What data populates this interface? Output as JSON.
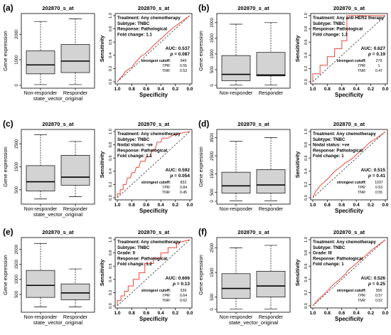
{
  "figure": {
    "panels": [
      {
        "letter": "(a)",
        "box": {
          "title": "202870_s_at",
          "ylabel": "Gene expression",
          "xlabel": "state_vector_original",
          "ticks": [
            "0",
            "1000",
            "2000"
          ],
          "ymax": 2700,
          "groups": [
            {
              "name": "Non-responder",
              "wlo": 30,
              "q1": 450,
              "med": 800,
              "q3": 1350,
              "whi": 2500
            },
            {
              "name": "Responder",
              "wlo": 30,
              "q1": 500,
              "med": 950,
              "q3": 1600,
              "whi": 2600
            }
          ]
        },
        "roc": {
          "title": "202870_s_at",
          "info": [
            "Treatment: Any chemotherapy",
            "Subtype: TNBC",
            "Response: Pathological",
            "Fold change: 1.1"
          ],
          "auc": "AUC: 0.537",
          "p_label": "p",
          "p_value": "= 0.087",
          "strongest": "strongest cutoff:",
          "cutoff": "949",
          "tpr_label": "TPR:",
          "tpr": "0.55",
          "tnr_label": "TNR:",
          "tnr": "0.53",
          "curve": [
            [
              1,
              0
            ],
            [
              0.96,
              0.06
            ],
            [
              0.92,
              0.1
            ],
            [
              0.9,
              0.14
            ],
            [
              0.86,
              0.18
            ],
            [
              0.8,
              0.22
            ],
            [
              0.76,
              0.28
            ],
            [
              0.72,
              0.33
            ],
            [
              0.68,
              0.38
            ],
            [
              0.62,
              0.42
            ],
            [
              0.58,
              0.46
            ],
            [
              0.54,
              0.5
            ],
            [
              0.5,
              0.55
            ],
            [
              0.45,
              0.6
            ],
            [
              0.4,
              0.65
            ],
            [
              0.35,
              0.7
            ],
            [
              0.3,
              0.75
            ],
            [
              0.25,
              0.8
            ],
            [
              0.2,
              0.84
            ],
            [
              0.15,
              0.88
            ],
            [
              0.1,
              0.92
            ],
            [
              0.05,
              0.96
            ],
            [
              0,
              1
            ]
          ]
        }
      },
      {
        "letter": "(b)",
        "box": {
          "title": "202870_s_at",
          "ylabel": "Gene expression",
          "xlabel": "",
          "ticks": [
            "0",
            "500",
            "1000",
            "1500",
            "2000"
          ],
          "ymax": 2200,
          "groups": [
            {
              "name": "Non-responder",
              "wlo": 10,
              "q1": 150,
              "med": 350,
              "q3": 950,
              "whi": 1950
            },
            {
              "name": "Responder",
              "wlo": 10,
              "q1": 300,
              "med": 330,
              "q3": 1050,
              "whi": 2000
            }
          ]
        },
        "roc": {
          "title": "202870_s_at",
          "info": [
            "Treatment: Any anti-HER2 therapy",
            "Subtype: TNBC",
            "Response: Pathological",
            "Fold change: 1.3"
          ],
          "auc": "AUC: 0.627",
          "p_label": "p",
          "p_value": "= 0.19",
          "strongest": "strongest cutoff:",
          "cutoff": "279",
          "tpr_label": "TPR:",
          "tpr": "1",
          "tnr_label": "TNR:",
          "tnr": "0.47",
          "curve": [
            [
              1,
              0
            ],
            [
              1,
              0.12
            ],
            [
              0.9,
              0.12
            ],
            [
              0.9,
              0.25
            ],
            [
              0.8,
              0.25
            ],
            [
              0.8,
              0.38
            ],
            [
              0.7,
              0.38
            ],
            [
              0.7,
              0.5
            ],
            [
              0.6,
              0.5
            ],
            [
              0.6,
              0.62
            ],
            [
              0.53,
              0.62
            ],
            [
              0.53,
              1
            ],
            [
              0.4,
              1
            ],
            [
              0,
              1
            ]
          ]
        }
      },
      {
        "letter": "(c)",
        "box": {
          "title": "202870_s_at",
          "ylabel": "Gene expression",
          "xlabel": "state_vector_original",
          "ticks": [
            "500",
            "1500",
            "2500"
          ],
          "ymax": 3000,
          "groups": [
            {
              "name": "Non-responder",
              "wlo": 100,
              "q1": 450,
              "med": 850,
              "q3": 1550,
              "whi": 2900
            },
            {
              "name": "Responder",
              "wlo": 200,
              "q1": 700,
              "med": 1050,
              "q3": 2000,
              "whi": 2600
            }
          ]
        },
        "roc": {
          "title": "202870_s_at",
          "info": [
            "Treatment: Any chemotherapy",
            "Subtype: TNBC",
            "Nodal status: -ve",
            "Response: Pathological",
            "Fold change: 1.1"
          ],
          "auc": "AUC: 0.592",
          "p_label": "p",
          "p_value": "= 0.054",
          "strongest": "strongest cutoff:",
          "cutoff": "832",
          "tpr_label": "TPR:",
          "tpr": "0.84",
          "tnr_label": "TNR:",
          "tnr": "0.45",
          "curve": [
            [
              1,
              0
            ],
            [
              1,
              0.06
            ],
            [
              0.96,
              0.06
            ],
            [
              0.96,
              0.12
            ],
            [
              0.92,
              0.12
            ],
            [
              0.92,
              0.2
            ],
            [
              0.88,
              0.2
            ],
            [
              0.86,
              0.3
            ],
            [
              0.82,
              0.3
            ],
            [
              0.8,
              0.38
            ],
            [
              0.76,
              0.38
            ],
            [
              0.74,
              0.46
            ],
            [
              0.7,
              0.46
            ],
            [
              0.68,
              0.55
            ],
            [
              0.62,
              0.55
            ],
            [
              0.6,
              0.62
            ],
            [
              0.55,
              0.62
            ],
            [
              0.52,
              0.72
            ],
            [
              0.48,
              0.72
            ],
            [
              0.45,
              0.84
            ],
            [
              0.4,
              0.84
            ],
            [
              0.38,
              0.9
            ],
            [
              0.3,
              0.9
            ],
            [
              0.25,
              0.94
            ],
            [
              0.15,
              0.97
            ],
            [
              0,
              1
            ]
          ]
        }
      },
      {
        "letter": "(d)",
        "box": {
          "title": "202870_s_at",
          "ylabel": "Gene expression",
          "xlabel": "",
          "ticks": [
            "0",
            "500",
            "1500",
            "2500",
            "3500"
          ],
          "ymax": 3800,
          "groups": [
            {
              "name": "Non-responder",
              "wlo": 30,
              "q1": 450,
              "med": 850,
              "q3": 1600,
              "whi": 3300
            },
            {
              "name": "Responder",
              "wlo": 30,
              "q1": 450,
              "med": 900,
              "q3": 1750,
              "whi": 3500
            }
          ]
        },
        "roc": {
          "title": "202870_s_at",
          "info": [
            "Treatment: Any chemotherapy",
            "Subtype: TNBC",
            "Nodal status: +ve",
            "Response: Pathological",
            "Fold change: 1"
          ],
          "auc": "AUC: 0.515",
          "p_label": "p",
          "p_value": "= 0.41",
          "strongest": "strongest cutoff:",
          "cutoff": "1037",
          "tpr_label": "TPR:",
          "tpr": "0.53",
          "tnr_label": "TNR:",
          "tnr": "0.55",
          "curve": [
            [
              1,
              0
            ],
            [
              0.98,
              0.05
            ],
            [
              0.96,
              0.1
            ],
            [
              0.94,
              0.12
            ],
            [
              0.9,
              0.18
            ],
            [
              0.86,
              0.22
            ],
            [
              0.82,
              0.26
            ],
            [
              0.78,
              0.3
            ],
            [
              0.74,
              0.35
            ],
            [
              0.7,
              0.4
            ],
            [
              0.65,
              0.44
            ],
            [
              0.6,
              0.48
            ],
            [
              0.55,
              0.53
            ],
            [
              0.5,
              0.56
            ],
            [
              0.45,
              0.6
            ],
            [
              0.4,
              0.65
            ],
            [
              0.35,
              0.7
            ],
            [
              0.3,
              0.74
            ],
            [
              0.25,
              0.8
            ],
            [
              0.2,
              0.85
            ],
            [
              0.12,
              0.9
            ],
            [
              0.06,
              0.95
            ],
            [
              0,
              1
            ]
          ]
        }
      },
      {
        "letter": "(e)",
        "box": {
          "title": "202870_s_at",
          "ylabel": "Gene expression",
          "xlabel": "state_vector_original",
          "ticks": [
            "500",
            "1000",
            "1500",
            "2000"
          ],
          "ymax": 2300,
          "groups": [
            {
              "name": "Non-responder",
              "wlo": 80,
              "q1": 400,
              "med": 800,
              "q3": 1300,
              "whi": 2200
            },
            {
              "name": "Responder",
              "wlo": 80,
              "q1": 320,
              "med": 550,
              "q3": 850,
              "whi": 1350
            }
          ]
        },
        "roc": {
          "title": "202870_s_at",
          "info": [
            "Treatment: Any chemotherapy",
            "Subtype: TNBC",
            "Grade: II",
            "Response: Pathological",
            "Fold change: 1.2"
          ],
          "auc": "AUC: 0.606",
          "p_label": "p",
          "p_value": "= 0.13",
          "strongest": "strongest cutoff:",
          "cutoff": "536",
          "tpr_label": "TPR:",
          "tpr": "0.64",
          "tnr_label": "TNR:",
          "tnr": "0.62",
          "curve": [
            [
              1,
              0
            ],
            [
              1,
              0.08
            ],
            [
              0.95,
              0.08
            ],
            [
              0.95,
              0.15
            ],
            [
              0.9,
              0.15
            ],
            [
              0.9,
              0.22
            ],
            [
              0.85,
              0.22
            ],
            [
              0.85,
              0.3
            ],
            [
              0.78,
              0.3
            ],
            [
              0.78,
              0.4
            ],
            [
              0.7,
              0.4
            ],
            [
              0.7,
              0.5
            ],
            [
              0.62,
              0.5
            ],
            [
              0.62,
              0.64
            ],
            [
              0.5,
              0.64
            ],
            [
              0.5,
              0.72
            ],
            [
              0.4,
              0.72
            ],
            [
              0.4,
              0.8
            ],
            [
              0.3,
              0.8
            ],
            [
              0.3,
              0.88
            ],
            [
              0.18,
              0.88
            ],
            [
              0.18,
              0.95
            ],
            [
              0,
              1
            ]
          ]
        }
      },
      {
        "letter": "(f)",
        "box": {
          "title": "202870_s_at",
          "ylabel": "Gene expression",
          "xlabel": "state_vector_original",
          "ticks": [
            "0",
            "500",
            "1500",
            "2500"
          ],
          "ymax": 2800,
          "groups": [
            {
              "name": "Non-responder",
              "wlo": 20,
              "q1": 450,
              "med": 850,
              "q3": 1450,
              "whi": 2500
            },
            {
              "name": "Responder",
              "wlo": 20,
              "q1": 500,
              "med": 950,
              "q3": 1550,
              "whi": 2600
            }
          ]
        },
        "roc": {
          "title": "202870_s_at",
          "info": [
            "Treatment: Any chemotherapy",
            "Subtype: TNBC",
            "Grade: III",
            "Response: Pathological",
            "Fold change: 1"
          ],
          "auc": "AUC: 0.526",
          "p_label": "p",
          "p_value": "= 0.25",
          "strongest": "strongest cutoff:",
          "cutoff": "956",
          "tpr_label": "TPR:",
          "tpr": "0.57",
          "tnr_label": "TNR:",
          "tnr": "0.52",
          "curve": [
            [
              1,
              0
            ],
            [
              0.97,
              0.04
            ],
            [
              0.94,
              0.08
            ],
            [
              0.9,
              0.12
            ],
            [
              0.86,
              0.16
            ],
            [
              0.82,
              0.2
            ],
            [
              0.78,
              0.25
            ],
            [
              0.74,
              0.3
            ],
            [
              0.7,
              0.34
            ],
            [
              0.65,
              0.38
            ],
            [
              0.6,
              0.43
            ],
            [
              0.55,
              0.48
            ],
            [
              0.52,
              0.53
            ],
            [
              0.48,
              0.57
            ],
            [
              0.42,
              0.62
            ],
            [
              0.36,
              0.68
            ],
            [
              0.3,
              0.73
            ],
            [
              0.24,
              0.79
            ],
            [
              0.18,
              0.85
            ],
            [
              0.12,
              0.9
            ],
            [
              0.06,
              0.95
            ],
            [
              0,
              1
            ]
          ]
        }
      }
    ]
  },
  "axis_labels": {
    "sensitivity": "Sensitivity",
    "specificity": "Specificity",
    "roc_yticks": [
      "0.0",
      "0.2",
      "0.4",
      "0.6",
      "0.8",
      "1.0"
    ],
    "roc_xticks": [
      "1.0",
      "0.8",
      "0.6",
      "0.4",
      "0.2",
      "0.0"
    ]
  },
  "colors": {
    "box_fill": "#d3d3d3",
    "roc_curve": "#e8483c",
    "diagonal": "#333333"
  }
}
